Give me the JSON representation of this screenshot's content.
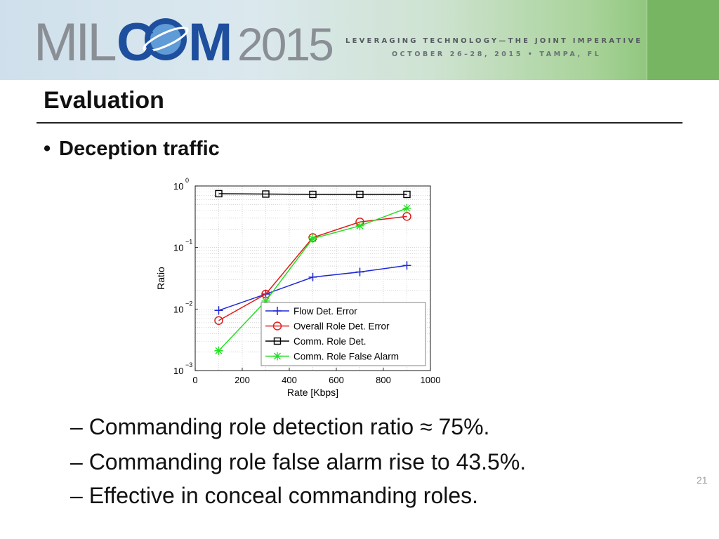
{
  "banner": {
    "logo_text": "MILCOM2015",
    "tagline": "LEVERAGING TECHNOLOGY—THE JOINT IMPERATIVE",
    "dates": "OCTOBER 26–28, 2015 • TAMPA, FL"
  },
  "slide": {
    "title": "Evaluation",
    "bullet": "Deception traffic",
    "subpoints": [
      "– Commanding role detection ratio ≈ 75%.",
      "– Commanding role false alarm rise to 43.5%.",
      "– Effective in conceal commanding roles."
    ],
    "page_number": "21"
  },
  "chart_data": {
    "type": "line",
    "xlabel": "Rate [Kbps]",
    "ylabel": "Ratio",
    "y_scale": "log",
    "xlim": [
      0,
      1000
    ],
    "ylim": [
      0.001,
      1
    ],
    "x_ticks": [
      "0",
      "200",
      "400",
      "600",
      "800",
      "1000"
    ],
    "y_ticks": [
      {
        "base": "10",
        "exp": "0"
      },
      {
        "base": "10",
        "exp": "−1"
      },
      {
        "base": "10",
        "exp": "−2"
      },
      {
        "base": "10",
        "exp": "−3"
      }
    ],
    "grid": true,
    "legend_position": "bottom-right",
    "x": [
      100,
      300,
      500,
      700,
      900
    ],
    "series": [
      {
        "name": "Flow Det. Error",
        "color": "#1f28d6",
        "marker": "plus",
        "values": [
          0.0095,
          0.0175,
          0.033,
          0.04,
          0.051
        ]
      },
      {
        "name": "Overall Role Det. Error",
        "color": "#e21b1b",
        "marker": "circle",
        "values": [
          0.0065,
          0.0175,
          0.145,
          0.26,
          0.32
        ]
      },
      {
        "name": "Comm. Role Det.",
        "color": "#000000",
        "marker": "square",
        "values": [
          0.75,
          0.74,
          0.73,
          0.73,
          0.73
        ]
      },
      {
        "name": "Comm. Role False Alarm",
        "color": "#22e022",
        "marker": "star",
        "values": [
          0.0021,
          0.0135,
          0.14,
          0.225,
          0.435
        ]
      }
    ]
  }
}
